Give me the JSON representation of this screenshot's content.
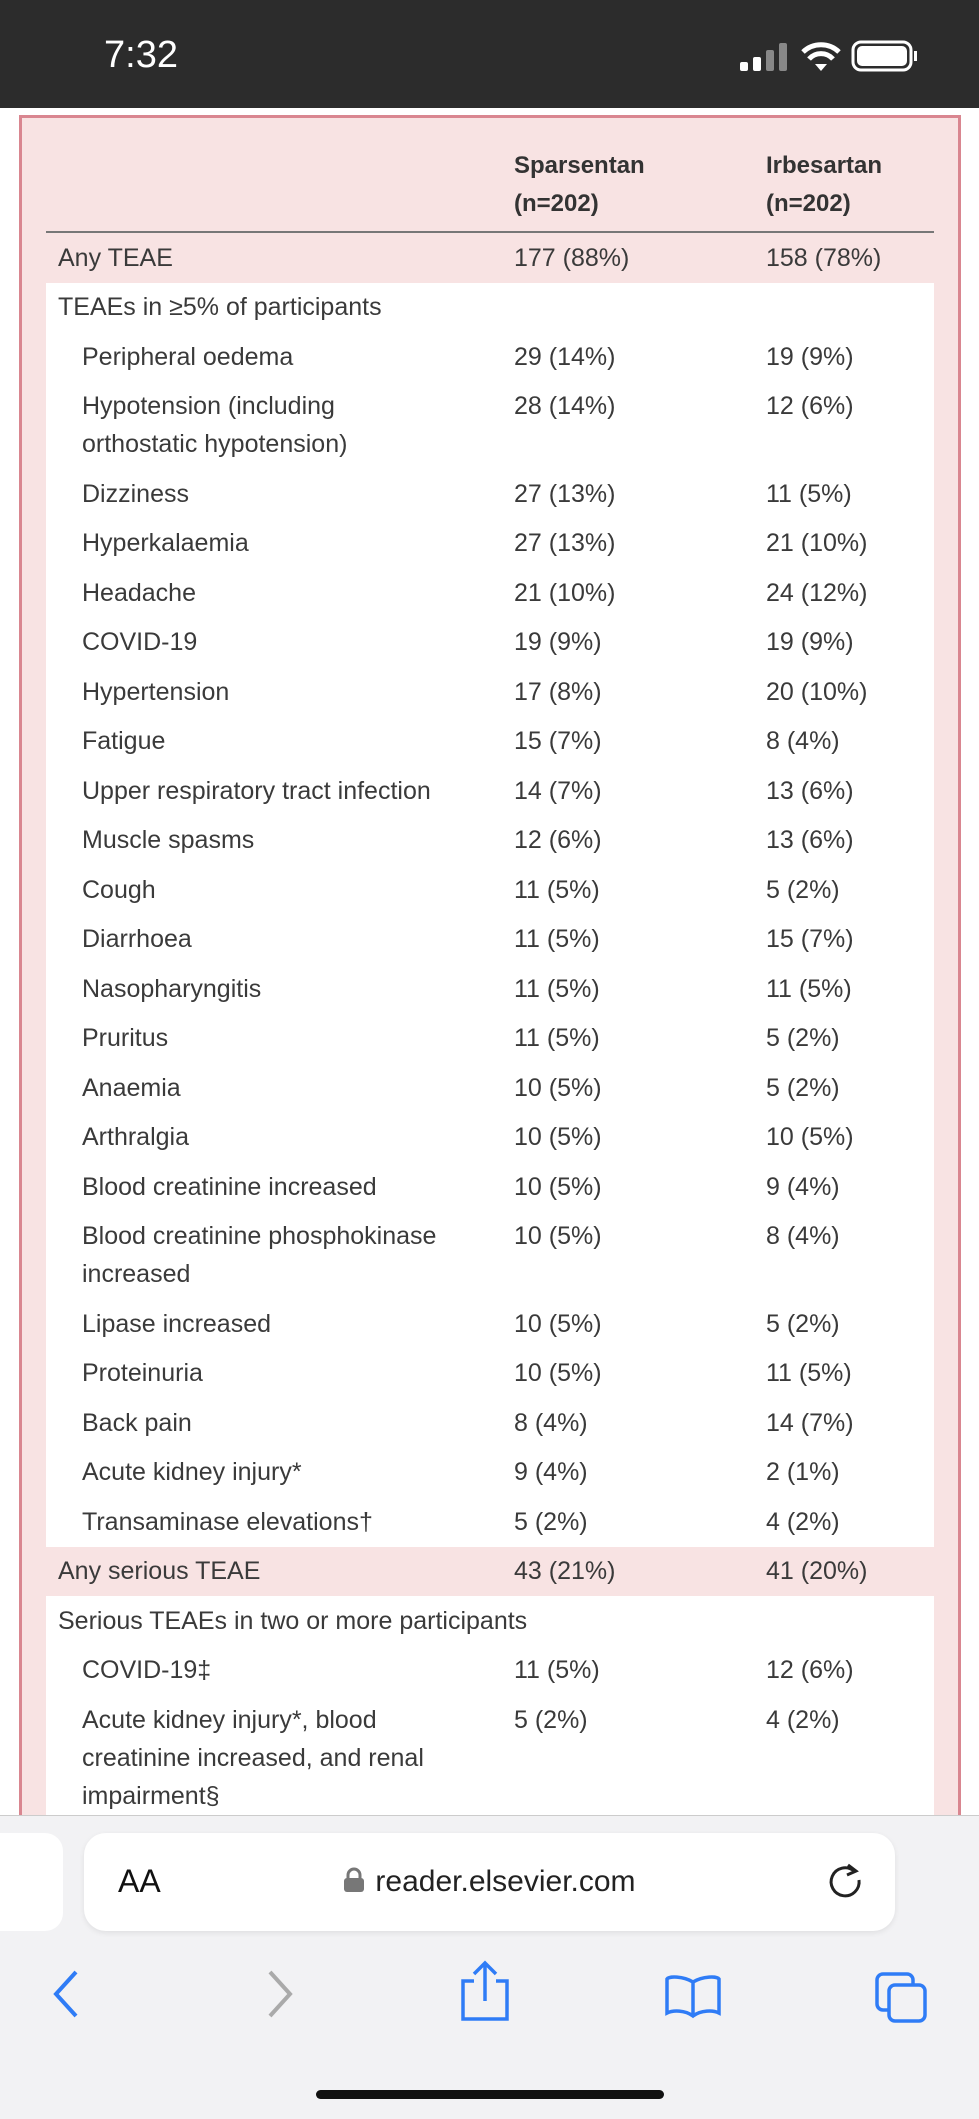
{
  "status_bar": {
    "time": "7:32"
  },
  "table": {
    "headers": [
      {
        "name": "Sparsentan",
        "n": "(n=202)"
      },
      {
        "name": "Irbesartan",
        "n": "(n=202)"
      }
    ],
    "blocks": [
      {
        "total": {
          "label": "Any TEAE",
          "values": [
            "177 (88%)",
            "158 (78%)"
          ]
        },
        "subtitle": "TEAEs in ≥5% of participants",
        "rows": [
          [
            "Peripheral oedema",
            "29 (14%)",
            "19 (9%)"
          ],
          [
            [
              "Hypotension (including",
              "orthostatic hypotension)"
            ],
            "28 (14%)",
            "12 (6%)"
          ],
          [
            "Dizziness",
            "27 (13%)",
            "11 (5%)"
          ],
          [
            "Hyperkalaemia",
            "27 (13%)",
            "21 (10%)"
          ],
          [
            "Headache",
            "21 (10%)",
            "24 (12%)"
          ],
          [
            "COVID-19",
            "19 (9%)",
            "19 (9%)"
          ],
          [
            "Hypertension",
            "17 (8%)",
            "20 (10%)"
          ],
          [
            "Fatigue",
            "15 (7%)",
            "8 (4%)"
          ],
          [
            "Upper respiratory tract infection",
            "14 (7%)",
            "13 (6%)"
          ],
          [
            "Muscle spasms",
            "12 (6%)",
            "13 (6%)"
          ],
          [
            "Cough",
            "11 (5%)",
            "5 (2%)"
          ],
          [
            "Diarrhoea",
            "11 (5%)",
            "15 (7%)"
          ],
          [
            "Nasopharyngitis",
            "11 (5%)",
            "11 (5%)"
          ],
          [
            "Pruritus",
            "11 (5%)",
            "5 (2%)"
          ],
          [
            "Anaemia",
            "10 (5%)",
            "5 (2%)"
          ],
          [
            "Arthralgia",
            "10 (5%)",
            "10 (5%)"
          ],
          [
            "Blood creatinine increased",
            "10 (5%)",
            "9 (4%)"
          ],
          [
            [
              "Blood creatinine phosphokinase",
              "increased"
            ],
            "10 (5%)",
            "8 (4%)"
          ],
          [
            "Lipase increased",
            "10 (5%)",
            "5 (2%)"
          ],
          [
            "Proteinuria",
            "10 (5%)",
            "11 (5%)"
          ],
          [
            "Back pain",
            "8 (4%)",
            "14 (7%)"
          ],
          [
            "Acute kidney injury*",
            "9 (4%)",
            "2 (1%)"
          ],
          [
            "Transaminase elevations†",
            "5 (2%)",
            "4 (2%)"
          ]
        ]
      },
      {
        "total": {
          "label": "Any serious TEAE",
          "values": [
            "43 (21%)",
            "41 (20%)"
          ]
        },
        "subtitle": "Serious TEAEs in two or more participants",
        "rows": [
          [
            "COVID-19‡",
            "11 (5%)",
            "12 (6%)"
          ],
          [
            [
              "Acute kidney injury*, blood",
              "creatinine increased, and renal",
              "impairment§"
            ],
            "5 (2%)",
            "4 (2%)"
          ]
        ]
      }
    ]
  },
  "browser": {
    "text_size": "AA",
    "url": "reader.elsevier.com"
  }
}
